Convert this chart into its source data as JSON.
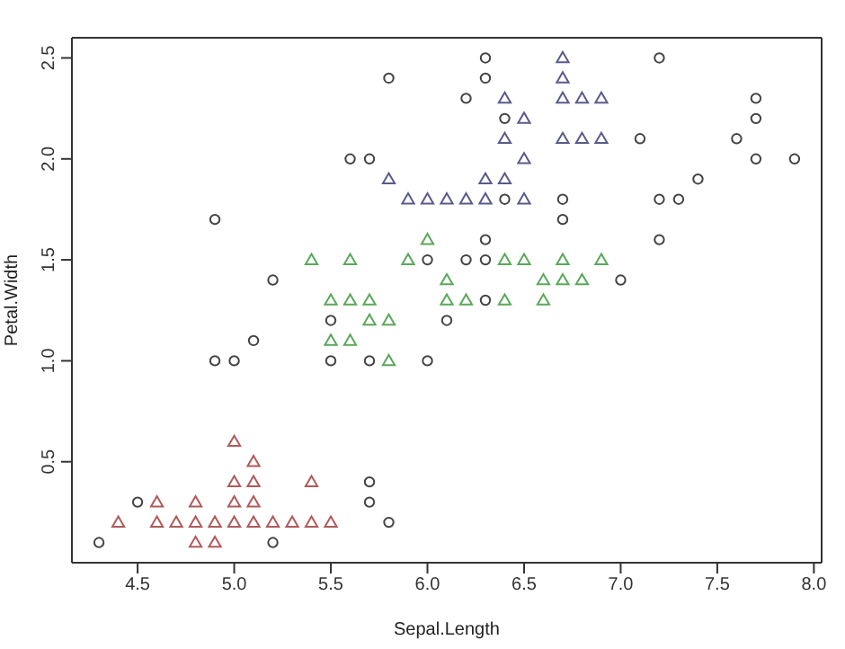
{
  "chart_data": {
    "type": "scatter",
    "xlabel": "Sepal.Length",
    "ylabel": "Petal.Width",
    "xlim": [
      4.16,
      8.04
    ],
    "ylim": [
      0.0,
      2.6
    ],
    "xticks": [
      4.5,
      {
        "value": 5,
        "label": "5.0"
      },
      5.5,
      {
        "value": 6,
        "label": "6.0"
      },
      6.5,
      {
        "value": 7,
        "label": "7.0"
      },
      7.5,
      {
        "value": 8,
        "label": "8.0"
      }
    ],
    "yticks": [
      0.5,
      {
        "value": 1,
        "label": "1.0"
      },
      1.5,
      {
        "value": 2,
        "label": "2.0"
      },
      2.5
    ],
    "legend": false,
    "series": [
      {
        "marker": "triangle",
        "color": "#b05a5a",
        "x": [
          4.4,
          4.6,
          4.7,
          4.8,
          4.9,
          5.0,
          5.1,
          5.2,
          5.3,
          5.4,
          5.5,
          4.6,
          4.8,
          5.0,
          5.1,
          5.0,
          5.1,
          5.4,
          4.8,
          4.9,
          5.1,
          5.0
        ],
        "values": [
          0.2,
          0.2,
          0.2,
          0.2,
          0.2,
          0.2,
          0.2,
          0.2,
          0.2,
          0.2,
          0.2,
          0.3,
          0.3,
          0.3,
          0.3,
          0.4,
          0.4,
          0.4,
          0.1,
          0.1,
          0.5,
          0.6
        ]
      },
      {
        "marker": "triangle",
        "color": "#5aa85a",
        "x": [
          5.4,
          5.6,
          5.9,
          6.4,
          6.5,
          6.7,
          6.9,
          6.1,
          6.6,
          6.7,
          6.8,
          5.5,
          5.6,
          5.7,
          6.1,
          6.2,
          6.4,
          6.6,
          5.7,
          5.8,
          5.5,
          5.6,
          5.8,
          6.0
        ],
        "values": [
          1.5,
          1.5,
          1.5,
          1.5,
          1.5,
          1.5,
          1.5,
          1.4,
          1.4,
          1.4,
          1.4,
          1.3,
          1.3,
          1.3,
          1.3,
          1.3,
          1.3,
          1.3,
          1.2,
          1.2,
          1.1,
          1.1,
          1.0,
          1.6
        ]
      },
      {
        "marker": "triangle",
        "color": "#5a5a8c",
        "x": [
          6.7,
          6.7,
          6.4,
          6.7,
          6.8,
          6.9,
          6.5,
          6.4,
          6.7,
          6.8,
          6.9,
          6.5,
          5.8,
          6.3,
          6.4,
          5.9,
          6.0,
          6.1,
          6.2,
          6.3,
          6.5
        ],
        "values": [
          2.5,
          2.4,
          2.3,
          2.3,
          2.3,
          2.3,
          2.2,
          2.1,
          2.1,
          2.1,
          2.1,
          2.0,
          1.9,
          1.9,
          1.9,
          1.8,
          1.8,
          1.8,
          1.8,
          1.8,
          1.8
        ]
      },
      {
        "marker": "circle",
        "color": "#444444",
        "x": [
          4.3,
          4.5,
          5.2,
          5.7,
          5.7,
          5.8,
          5.2,
          5.5,
          5.5,
          6.1,
          6.3,
          6.7,
          7.0,
          4.9,
          4.9,
          5.0,
          5.1,
          5.7,
          6.0,
          6.0,
          6.2,
          6.3,
          6.3,
          5.8,
          6.3,
          6.3,
          6.2,
          6.4,
          5.6,
          5.7,
          6.4,
          6.7,
          7.2,
          7.1,
          7.6,
          7.7,
          7.7,
          7.7,
          7.9,
          7.4,
          7.2,
          7.3,
          7.2
        ],
        "values": [
          0.1,
          0.3,
          0.1,
          0.4,
          0.3,
          0.2,
          1.4,
          1.2,
          1.0,
          1.2,
          1.6,
          1.7,
          1.4,
          1.7,
          1.0,
          1.0,
          1.1,
          1.0,
          1.0,
          1.5,
          1.5,
          1.5,
          1.3,
          2.4,
          2.5,
          2.4,
          2.3,
          2.2,
          2.0,
          2.0,
          1.8,
          1.8,
          2.5,
          2.1,
          2.1,
          2.3,
          2.2,
          2.0,
          2.0,
          1.9,
          1.8,
          1.8,
          1.6
        ]
      }
    ]
  }
}
